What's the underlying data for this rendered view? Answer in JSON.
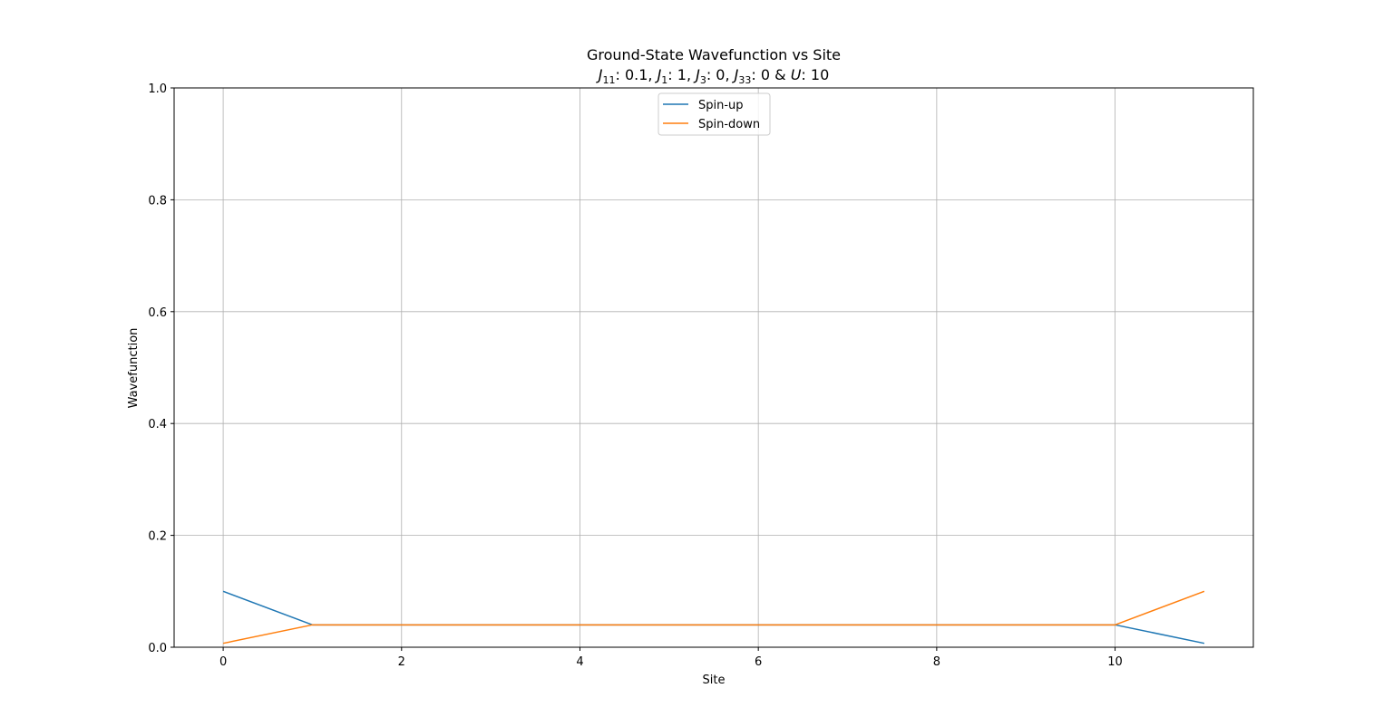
{
  "chart_data": {
    "type": "line",
    "title": "Ground-State Wavefunction vs Site",
    "subtitle": "J11: 0.1, J1: 1, J3: 0, J33: 0 & U: 10",
    "subtitle_parts": [
      {
        "text": "J",
        "italic": true
      },
      {
        "text": "11",
        "sub": true
      },
      {
        "text": ": 0.1, "
      },
      {
        "text": "J",
        "italic": true
      },
      {
        "text": "1",
        "sub": true
      },
      {
        "text": ": 1, "
      },
      {
        "text": "J",
        "italic": true
      },
      {
        "text": "3",
        "sub": true
      },
      {
        "text": ": 0, "
      },
      {
        "text": "J",
        "italic": true
      },
      {
        "text": "33",
        "sub": true
      },
      {
        "text": ": 0 & "
      },
      {
        "text": "U",
        "italic": true
      },
      {
        "text": ": 10"
      }
    ],
    "xlabel": "Site",
    "ylabel": "Wavefunction",
    "xlim": [
      -0.55,
      11.55
    ],
    "ylim": [
      0,
      1.0
    ],
    "xticks": [
      0,
      2,
      4,
      6,
      8,
      10
    ],
    "yticks": [
      0.0,
      0.2,
      0.4,
      0.6,
      0.8,
      1.0
    ],
    "xtick_labels": [
      "0",
      "2",
      "4",
      "6",
      "8",
      "10"
    ],
    "ytick_labels": [
      "0.0",
      "0.2",
      "0.4",
      "0.6",
      "0.8",
      "1.0"
    ],
    "grid": true,
    "legend_position": "upper center",
    "x": [
      0,
      1,
      2,
      3,
      4,
      5,
      6,
      7,
      8,
      9,
      10,
      11
    ],
    "series": [
      {
        "name": "Spin-up",
        "color": "#1f77b4",
        "values": [
          0.1,
          0.04,
          0.04,
          0.04,
          0.04,
          0.04,
          0.04,
          0.04,
          0.04,
          0.04,
          0.04,
          0.007
        ]
      },
      {
        "name": "Spin-down",
        "color": "#ff7f0e",
        "values": [
          0.007,
          0.04,
          0.04,
          0.04,
          0.04,
          0.04,
          0.04,
          0.04,
          0.04,
          0.04,
          0.04,
          0.1
        ]
      }
    ]
  }
}
